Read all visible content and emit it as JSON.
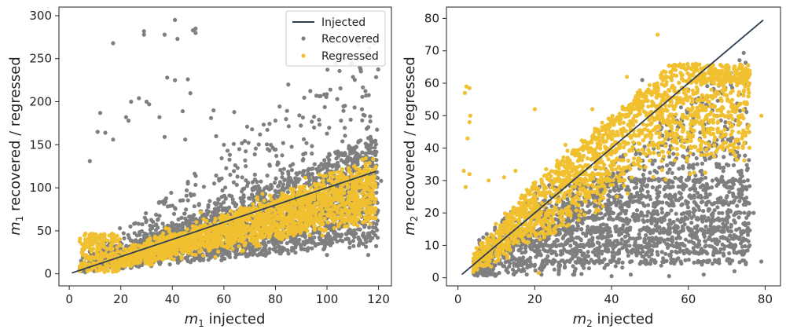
{
  "chart_data": [
    {
      "type": "scatter",
      "xlabel": {
        "sym": "m",
        "sub": "1",
        "text": "injected"
      },
      "ylabel": {
        "sym": "m",
        "sub": "1",
        "text": "recovered / regressed"
      },
      "xlim": [
        -4,
        125
      ],
      "ylim": [
        -14,
        310
      ],
      "xticks": [
        0,
        20,
        40,
        60,
        80,
        100,
        120
      ],
      "yticks": [
        0,
        50,
        100,
        150,
        200,
        250,
        300
      ],
      "grid": false,
      "legend": {
        "placement": "top-right",
        "entries": [
          "Injected",
          "Recovered",
          "Regressed"
        ]
      },
      "series": [
        {
          "name": "Injected",
          "kind": "line",
          "color": "#2d3e50",
          "x": [
            1,
            119
          ],
          "y": [
            1,
            119
          ]
        },
        {
          "name": "Recovered",
          "kind": "scatter",
          "color": "#7f7f7f",
          "points": [
            [
              17,
              268
            ],
            [
              29,
              282
            ],
            [
              29,
              278
            ],
            [
              37,
              278
            ],
            [
              41,
              295
            ],
            [
              42,
              273
            ],
            [
              48,
              283
            ],
            [
              49,
              280
            ],
            [
              49,
              285
            ],
            [
              38,
              228
            ],
            [
              41,
              225
            ],
            [
              46,
              226
            ],
            [
              47,
              210
            ],
            [
              85,
              220
            ],
            [
              24,
              200
            ],
            [
              27,
              204
            ],
            [
              30,
              200
            ],
            [
              31,
              197
            ],
            [
              12,
              187
            ],
            [
              22,
              182
            ],
            [
              35,
              182
            ],
            [
              55,
              181
            ],
            [
              56,
              190
            ],
            [
              64,
              188
            ],
            [
              80,
              178
            ],
            [
              100,
              163
            ],
            [
              95,
              170
            ],
            [
              104,
              203
            ],
            [
              37,
              159
            ],
            [
              45,
              156
            ],
            [
              14,
              164
            ],
            [
              11,
              165
            ],
            [
              17,
              156
            ],
            [
              57,
              160
            ],
            [
              60,
              150
            ],
            [
              83,
              152
            ],
            [
              77,
              145
            ],
            [
              113,
              155
            ],
            [
              117,
              128
            ],
            [
              115,
              140
            ],
            [
              119,
              118
            ],
            [
              121,
              108
            ],
            [
              106,
              154
            ],
            [
              8,
              131
            ],
            [
              74,
              162
            ],
            [
              23,
              178
            ],
            [
              44,
              189
            ],
            [
              69,
              171
            ],
            [
              99,
              132
            ],
            [
              101,
              126
            ],
            [
              116,
              22
            ],
            [
              100,
              22
            ]
          ]
        },
        {
          "name": "Regressed",
          "kind": "scatter",
          "color": "#f0c030",
          "points": []
        }
      ]
    },
    {
      "type": "scatter",
      "xlabel": {
        "sym": "m",
        "sub": "2",
        "text": "injected"
      },
      "ylabel": {
        "sym": "m",
        "sub": "2",
        "text": "recovered / regressed"
      },
      "xlim": [
        -3,
        84
      ],
      "ylim": [
        -2.5,
        83.5
      ],
      "xticks": [
        0,
        20,
        40,
        60,
        80
      ],
      "yticks": [
        0,
        10,
        20,
        30,
        40,
        50,
        60,
        70,
        80
      ],
      "grid": false,
      "series": [
        {
          "name": "Injected",
          "kind": "line",
          "color": "#2d3e50",
          "x": [
            1,
            79.5
          ],
          "y": [
            1,
            79.5
          ]
        },
        {
          "name": "Recovered",
          "kind": "scatter",
          "color": "#7f7f7f",
          "points": [
            [
              10,
              1
            ],
            [
              30,
              1
            ],
            [
              45,
              1
            ],
            [
              72,
              2
            ],
            [
              79,
              5
            ],
            [
              68,
              35
            ],
            [
              75,
              28
            ],
            [
              72,
              39
            ],
            [
              77,
              20
            ],
            [
              60,
              58
            ],
            [
              62,
              55
            ],
            [
              66,
              60
            ],
            [
              48,
              61
            ],
            [
              40,
              0.5
            ],
            [
              55,
              0.5
            ],
            [
              64,
              1
            ],
            [
              74,
              8
            ]
          ]
        },
        {
          "name": "Regressed",
          "kind": "scatter",
          "color": "#f0c030",
          "points": [
            [
              1.8,
              57
            ],
            [
              2.2,
              59
            ],
            [
              3,
              58.5
            ],
            [
              3,
              48
            ],
            [
              3.2,
              50
            ],
            [
              2.5,
              43
            ],
            [
              1.5,
              33
            ],
            [
              3,
              32
            ],
            [
              2,
              28
            ],
            [
              52,
              75
            ],
            [
              20,
              52
            ],
            [
              44,
              62
            ],
            [
              62,
              66
            ],
            [
              70,
              65
            ],
            [
              79,
              50
            ],
            [
              71,
              57
            ],
            [
              73,
              60
            ],
            [
              8,
              30
            ],
            [
              12,
              31
            ],
            [
              15,
              33
            ],
            [
              21,
              1.5
            ],
            [
              28,
              41
            ],
            [
              66,
              58
            ],
            [
              35,
              52
            ]
          ]
        }
      ]
    }
  ]
}
